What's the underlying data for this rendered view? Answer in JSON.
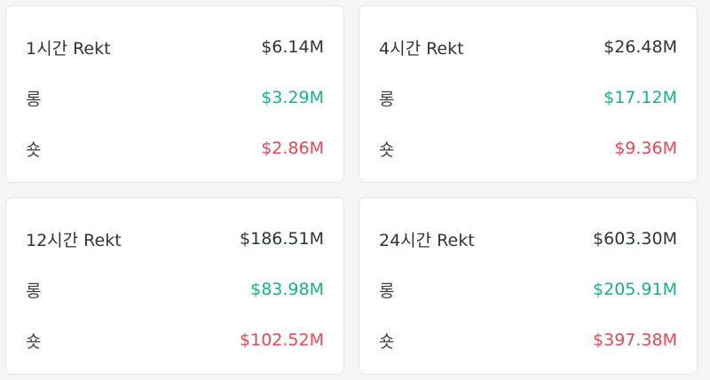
{
  "cards": [
    {
      "title": "1시간 Rekt",
      "total": "$6.14M",
      "long_label": "롱",
      "long_value": "$3.29M",
      "short_label": "숏",
      "short_value": "$2.86M"
    },
    {
      "title": "4시간 Rekt",
      "total": "$26.48M",
      "long_label": "롱",
      "long_value": "$17.12M",
      "short_label": "숏",
      "short_value": "$9.36M"
    },
    {
      "title": "12시간 Rekt",
      "total": "$186.51M",
      "long_label": "롱",
      "long_value": "$83.98M",
      "short_label": "숏",
      "short_value": "$102.52M"
    },
    {
      "title": "24시간 Rekt",
      "total": "$603.30M",
      "long_label": "롱",
      "long_value": "$205.91M",
      "short_label": "숏",
      "short_value": "$397.38M"
    }
  ],
  "colors": {
    "long": "#13b38d",
    "short": "#e54856",
    "text": "#2f343b"
  }
}
